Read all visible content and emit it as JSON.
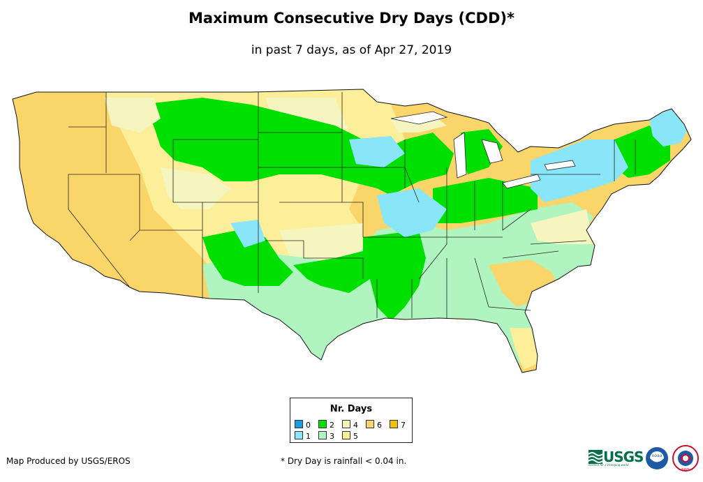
{
  "title": "Maximum Consecutive Dry Days (CDD)*",
  "subtitle": "in past 7 days, as of Apr 27, 2019",
  "legend": {
    "title": "Nr. Days",
    "items": [
      {
        "label": "0",
        "color": "#1a9be8"
      },
      {
        "label": "1",
        "color": "#88e6f8"
      },
      {
        "label": "2",
        "color": "#00e000"
      },
      {
        "label": "3",
        "color": "#b0f5c0"
      },
      {
        "label": "4",
        "color": "#f5f5c0"
      },
      {
        "label": "5",
        "color": "#fdee9a"
      },
      {
        "label": "6",
        "color": "#f9d56a"
      },
      {
        "label": "7",
        "color": "#f5c000"
      }
    ]
  },
  "footer": {
    "producer": "Map Produced by USGS/EROS",
    "note": "* Dry Day is rainfall < 0.04 in."
  },
  "logos": {
    "usgs": "USGS",
    "usgs_tagline": "science for a changing world",
    "noaa": "noaa",
    "nws": "NWS"
  },
  "map": {
    "region": "Contiguous United States",
    "colors": {
      "west": "#f9d56a",
      "plains": "#fdee9a",
      "northern_plains": "#00e000",
      "northeast": "#88e6f8",
      "south": "#b0f5c0",
      "pale": "#f5f5c0",
      "lakes": "#ffffff",
      "border": "#222222"
    }
  }
}
